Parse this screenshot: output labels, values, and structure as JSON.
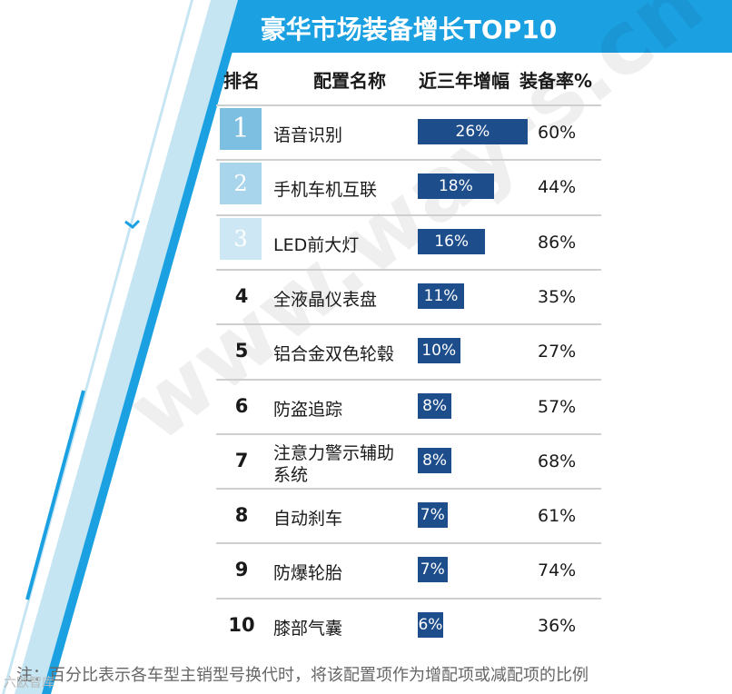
{
  "title": "豪华市场装备增长TOP10",
  "headers": {
    "rank": "排名",
    "name": "配置名称",
    "growth": "近三年增幅",
    "rate": "装备率%"
  },
  "colors": {
    "bar": "#1e4d8c",
    "accent": "#1ba1e2",
    "light_accent": "#c5e5f3",
    "rank1": "#7dbfe0",
    "rank2": "#a8d5eb",
    "rank3": "#cde8f4"
  },
  "chart_data": {
    "type": "table",
    "title": "豪华市场装备增长TOP10",
    "columns": [
      "排名",
      "配置名称",
      "近三年增幅",
      "装备率%"
    ],
    "rows": [
      {
        "rank": "1",
        "name": "语音识别",
        "growth": 26,
        "growth_label": "26%",
        "rate": "60%"
      },
      {
        "rank": "2",
        "name": "手机车机互联",
        "growth": 18,
        "growth_label": "18%",
        "rate": "44%"
      },
      {
        "rank": "3",
        "name": "LED前大灯",
        "growth": 16,
        "growth_label": "16%",
        "rate": "86%"
      },
      {
        "rank": "4",
        "name": "全液晶仪表盘",
        "growth": 11,
        "growth_label": "11%",
        "rate": "35%"
      },
      {
        "rank": "5",
        "name": "铝合金双色轮毂",
        "growth": 10,
        "growth_label": "10%",
        "rate": "27%"
      },
      {
        "rank": "6",
        "name": "防盗追踪",
        "growth": 8,
        "growth_label": "8%",
        "rate": "57%"
      },
      {
        "rank": "7",
        "name": "注意力警示辅助\n系统",
        "growth": 8,
        "growth_label": "8%",
        "rate": "68%"
      },
      {
        "rank": "8",
        "name": "自动刹车",
        "growth": 7,
        "growth_label": "7%",
        "rate": "61%"
      },
      {
        "rank": "9",
        "name": "防爆轮胎",
        "growth": 7,
        "growth_label": "7%",
        "rate": "74%"
      },
      {
        "rank": "10",
        "name": "膝部气囊",
        "growth": 6,
        "growth_label": "6%",
        "rate": "36%"
      }
    ]
  },
  "note": "注：百分比表示各车型主销型号换代时，将该配置项作为增配项或减配项的比例",
  "logo_text": "六欧智库",
  "watermark": "www.way-s.cn"
}
